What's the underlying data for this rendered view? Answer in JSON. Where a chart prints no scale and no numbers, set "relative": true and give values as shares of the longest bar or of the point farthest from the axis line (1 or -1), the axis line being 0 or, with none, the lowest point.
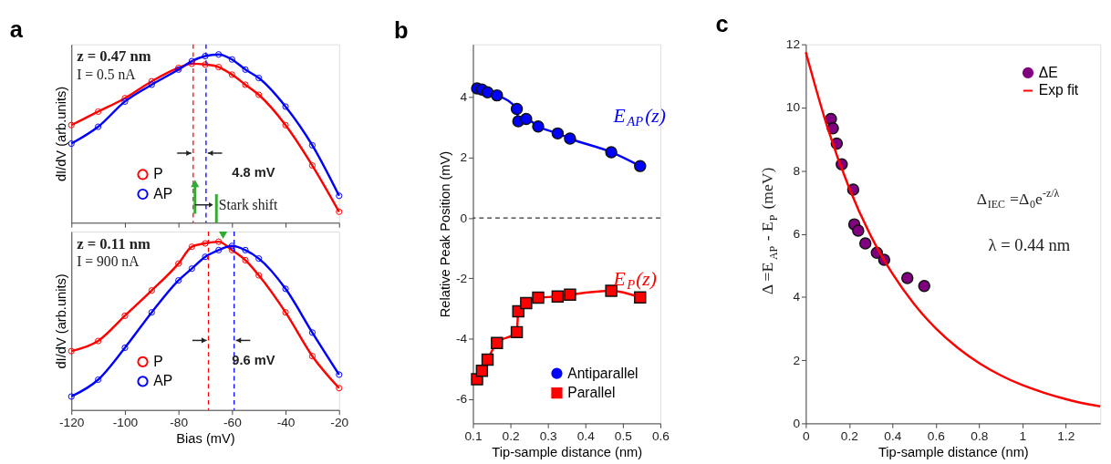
{
  "chart_data": [
    {
      "type": "line",
      "title": "a",
      "ylabel": "dI/dV (arb.units)",
      "relative": true,
      "marker": "circle",
      "legend": "bottom left",
      "tick_labels": false,
      "x": [
        -120,
        -110,
        -100,
        -90,
        -80,
        -75,
        -70,
        -65,
        -60,
        -55,
        -50,
        -40,
        -30,
        -20
      ],
      "xlim": [
        -120,
        -20
      ],
      "xticks": [
        -120,
        -100,
        -80,
        -60,
        -40,
        -20
      ],
      "series": [
        {
          "name": "P",
          "color": "#ff0000",
          "values": [
            0.58,
            0.66,
            0.74,
            0.84,
            0.92,
            0.945,
            0.94,
            0.925,
            0.88,
            0.82,
            0.76,
            0.58,
            0.34,
            0.065
          ]
        },
        {
          "name": "AP",
          "color": "#0000ff",
          "values": [
            0.47,
            0.57,
            0.72,
            0.82,
            0.91,
            0.96,
            0.99,
            1.0,
            0.97,
            0.91,
            0.86,
            0.69,
            0.46,
            0.16
          ]
        }
      ],
      "ref_lines": [
        {
          "axis": "x",
          "value": -74.5,
          "color": "#ff0000",
          "line_style": "dashed"
        },
        {
          "axis": "x",
          "value": -69.7,
          "color": "#0000ff",
          "line_style": "dashed"
        }
      ],
      "annotations": [
        "z = 0.47 nm",
        "I = 0.5 nA",
        "4.8 mV",
        "Stark shift"
      ]
    },
    {
      "type": "line",
      "xlabel": "Bias (mV)",
      "ylabel": "dI/dV (arb.units)",
      "relative": true,
      "marker": "circle",
      "legend": "bottom left",
      "tick_labels": "x",
      "x": [
        -120,
        -110,
        -100,
        -90,
        -80,
        -75,
        -70,
        -65,
        -60,
        -55,
        -50,
        -40,
        -30,
        -20
      ],
      "xlim": [
        -120,
        -20
      ],
      "xticks": [
        -120,
        -100,
        -80,
        -60,
        -40,
        -20
      ],
      "series": [
        {
          "name": "P",
          "color": "#ff0000",
          "values": [
            0.35,
            0.41,
            0.56,
            0.71,
            0.87,
            0.97,
            0.99,
            1.0,
            0.95,
            0.89,
            0.8,
            0.58,
            0.32,
            0.13
          ]
        },
        {
          "name": "AP",
          "color": "#0000ff",
          "values": [
            0.08,
            0.18,
            0.37,
            0.58,
            0.77,
            0.84,
            0.91,
            0.95,
            0.975,
            0.95,
            0.9,
            0.72,
            0.46,
            0.21
          ]
        }
      ],
      "ref_lines": [
        {
          "axis": "x",
          "value": -68.8,
          "color": "#ff0000",
          "line_style": "dashed"
        },
        {
          "axis": "x",
          "value": -59.2,
          "color": "#0000ff",
          "line_style": "dashed"
        }
      ],
      "annotations": [
        "z = 0.11 nm",
        "I = 900 nA",
        "9.6 mV"
      ]
    },
    {
      "type": "line",
      "title": "b",
      "xlabel": "Tip-sample distance (nm)",
      "ylabel": "Relative Peak Position (mV)",
      "legend": "bottom right",
      "x": [
        0.111,
        0.124,
        0.139,
        0.164,
        0.217,
        0.221,
        0.242,
        0.274,
        0.326,
        0.359,
        0.469,
        0.546
      ],
      "xlim": [
        0.1,
        0.6
      ],
      "xticks": [
        0.1,
        0.2,
        0.3,
        0.4,
        0.5,
        0.6
      ],
      "ylim": [
        -6.8,
        5.75
      ],
      "yticks": [
        -6,
        -4,
        -2,
        0,
        2,
        4
      ],
      "series": [
        {
          "name": "Antiparallel",
          "color": "#0000ff",
          "marker": "circle",
          "values": [
            4.29,
            4.25,
            4.16,
            4.06,
            3.61,
            3.2,
            3.28,
            3.03,
            2.8,
            2.63,
            2.18,
            1.72
          ]
        },
        {
          "name": "Parallel",
          "color": "#ff0000",
          "marker": "square",
          "values": [
            -5.34,
            -5.06,
            -4.69,
            -4.14,
            -3.78,
            -3.09,
            -2.82,
            -2.64,
            -2.6,
            -2.54,
            -2.41,
            -2.63
          ]
        }
      ],
      "ref_lines": [
        {
          "axis": "y",
          "value": 0,
          "color": "#333333",
          "line_style": "dashed"
        }
      ],
      "annotations": [
        "E$_{AP}$(z)",
        "E$_{P}$(z)"
      ]
    },
    {
      "type": "scatter",
      "title": "c",
      "xlabel": "Tip-sample distance (nm)",
      "ylabel": "Δ =E$_{AP}$ - E$_{P}$ (meV)",
      "legend": "top right",
      "marker": "circle",
      "xlim": [
        0,
        1.36
      ],
      "xticks": [
        0,
        0.2,
        0.4,
        0.6,
        0.8,
        1,
        1.2
      ],
      "ylim": [
        0,
        12
      ],
      "yticks": [
        0,
        2,
        4,
        6,
        8,
        10,
        12
      ],
      "series": [
        {
          "name": "ΔE",
          "color": "#800080",
          "x": [
            0.116,
            0.125,
            0.143,
            0.166,
            0.219,
            0.224,
            0.242,
            0.275,
            0.328,
            0.362,
            0.469,
            0.547
          ],
          "values": [
            9.64,
            9.34,
            8.86,
            8.2,
            7.4,
            6.3,
            6.1,
            5.7,
            5.4,
            5.18,
            4.6,
            4.35
          ]
        },
        {
          "name": "Exp fit",
          "type": "line",
          "marker": "none",
          "color": "#ff0000",
          "x": [
            0,
            0.1,
            0.2,
            0.3,
            0.4,
            0.5,
            0.6,
            0.7,
            0.8,
            0.9,
            1.0,
            1.1,
            1.2,
            1.3,
            1.36
          ],
          "values": [
            11.75,
            9.37,
            7.46,
            5.94,
            4.74,
            3.78,
            3.01,
            2.4,
            1.91,
            1.52,
            1.21,
            0.97,
            0.77,
            0.61,
            0.54
          ]
        }
      ],
      "annotations": [
        "Δ$_{IEC}$=Δ$_{0}$e$^{-z/λ}$",
        "λ = 0.44 nm"
      ]
    }
  ]
}
